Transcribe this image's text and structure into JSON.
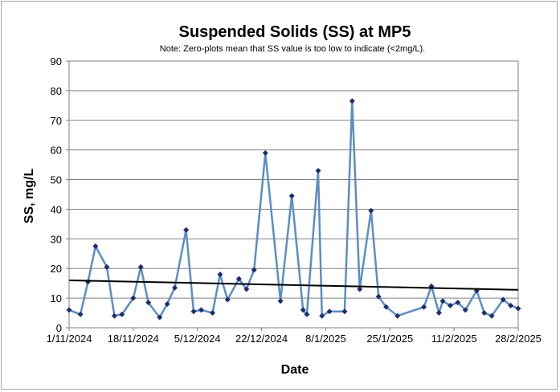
{
  "chart_data": {
    "type": "line",
    "title": "Suspended Solids (SS) at MP5",
    "subtitle": "Note: Zero-plots mean that SS value is too low to indicate (<2mg/L).",
    "xlabel": "Date",
    "ylabel": "SS, mg/L",
    "ylim": [
      0,
      90
    ],
    "y_ticks": [
      "0",
      "10",
      "20",
      "30",
      "40",
      "50",
      "60",
      "70",
      "80",
      "90"
    ],
    "x_ticks": [
      "1/11/2024",
      "18/11/2024",
      "5/12/2024",
      "22/12/2024",
      "8/1/2025",
      "25/1/2025",
      "11/2/2025",
      "28/2/2025"
    ],
    "grid": "horizontal",
    "legend": "none",
    "colors": {
      "series": "#5b8ec4",
      "marker": "#1f2d6b",
      "trend": "#000000"
    },
    "series": [
      {
        "x": [
          "1/11/2024",
          "4/11/2024",
          "6/11/2024",
          "8/11/2024",
          "11/11/2024",
          "13/11/2024",
          "15/11/2024",
          "18/11/2024",
          "20/11/2024",
          "22/11/2024",
          "25/11/2024",
          "27/11/2024",
          "29/11/2024",
          "2/12/2024",
          "4/12/2024",
          "6/12/2024",
          "9/12/2024",
          "11/12/2024",
          "13/12/2024",
          "16/12/2024",
          "18/12/2024",
          "20/12/2024",
          "23/12/2024",
          "27/12/2024",
          "30/12/2024",
          "2/1/2025",
          "3/1/2025",
          "6/1/2025",
          "7/1/2025",
          "9/1/2025",
          "13/1/2025",
          "15/1/2025",
          "17/1/2025",
          "20/1/2025",
          "22/1/2025",
          "24/1/2025",
          "27/1/2025",
          "3/2/2025",
          "5/2/2025",
          "7/2/2025",
          "8/2/2025",
          "10/2/2025",
          "12/2/2025",
          "14/2/2025",
          "17/2/2025",
          "19/2/2025",
          "21/2/2025",
          "24/2/2025",
          "26/2/2025",
          "28/2/2025"
        ],
        "values": [
          6,
          4.5,
          15.5,
          27.5,
          20.5,
          4,
          4.5,
          10,
          20.5,
          8.5,
          3.5,
          8,
          13.5,
          33,
          5.5,
          6,
          5,
          18,
          9.5,
          16.5,
          13,
          19.5,
          59,
          9,
          44.5,
          6,
          4.5,
          53,
          4,
          5.5,
          5.5,
          76.5,
          13,
          39.5,
          10.5,
          7,
          4,
          7,
          14,
          5,
          9,
          7.5,
          8.5,
          6,
          12.5,
          5,
          4,
          9.5,
          7.5,
          6.5
        ]
      }
    ],
    "trendline": {
      "start": [
        "1/11/2024",
        16
      ],
      "end": [
        "28/2/2025",
        12.8
      ]
    }
  }
}
